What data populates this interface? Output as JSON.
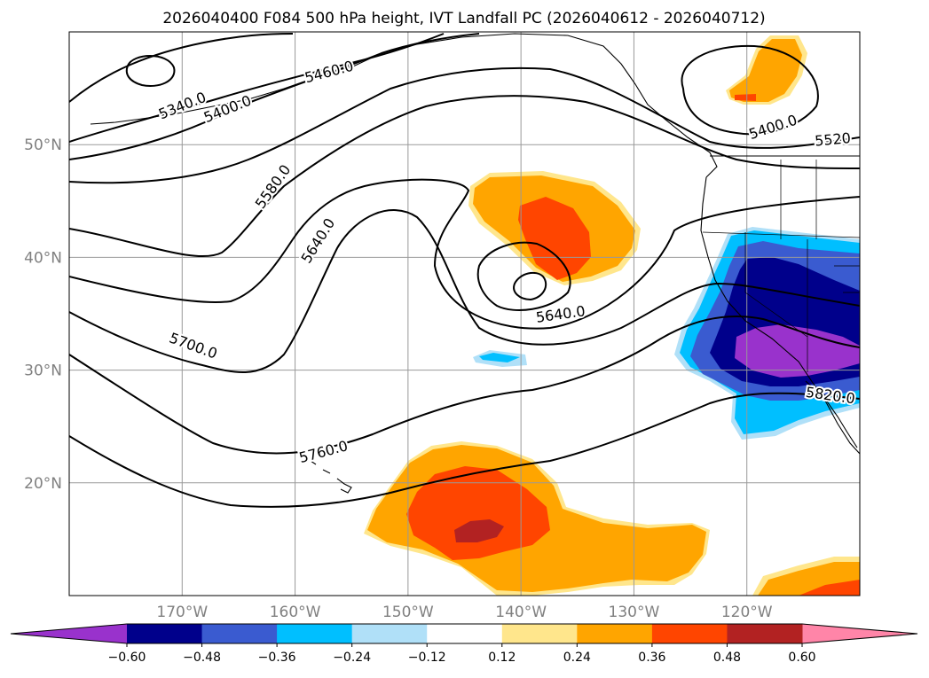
{
  "title": "2026040400 F084 500 hPa height, IVT Landfall PC (2026040612 - 2026040712)",
  "chart_data": {
    "type": "heatmap",
    "title": "2026040400 F084 500 hPa height, IVT Landfall PC (2026040612 - 2026040712)",
    "lon_range": [
      -180,
      -110
    ],
    "lat_range": [
      10,
      60
    ],
    "lat_ticks": [
      {
        "value": 50,
        "label": "50°N"
      },
      {
        "value": 40,
        "label": "40°N"
      },
      {
        "value": 30,
        "label": "30°N"
      },
      {
        "value": 20,
        "label": "20°N"
      }
    ],
    "lon_ticks": [
      {
        "value": -170,
        "label": "170°W"
      },
      {
        "value": -160,
        "label": "160°W"
      },
      {
        "value": -150,
        "label": "150°W"
      },
      {
        "value": -140,
        "label": "140°W"
      },
      {
        "value": -130,
        "label": "130°W"
      },
      {
        "value": -120,
        "label": "120°W"
      }
    ],
    "contour_labels": [
      {
        "text": "5340.0",
        "lon": -170,
        "lat": 53.5,
        "angle": -22
      },
      {
        "text": "5400.0",
        "lon": -166,
        "lat": 53.2,
        "angle": -22
      },
      {
        "text": "5460.0",
        "lon": -157,
        "lat": 56.5,
        "angle": -15
      },
      {
        "text": "5400.0",
        "lon": -117.7,
        "lat": 51.6,
        "angle": -18
      },
      {
        "text": "5520",
        "lon": -112.4,
        "lat": 50.5,
        "angle": -5
      },
      {
        "text": "5580.0",
        "lon": -162,
        "lat": 46.3,
        "angle": -55
      },
      {
        "text": "5640.0",
        "lon": -158,
        "lat": 41.5,
        "angle": -58
      },
      {
        "text": "5640.0",
        "lon": -136.5,
        "lat": 35,
        "angle": -8
      },
      {
        "text": "5700.0",
        "lon": -169,
        "lat": 32.2,
        "angle": 20
      },
      {
        "text": "5760.0",
        "lon": -157.5,
        "lat": 22.8,
        "angle": -15
      },
      {
        "text": "5820.0",
        "lon": -112.6,
        "lat": 27.8,
        "angle": 8
      }
    ],
    "colorbar": {
      "colors": [
        "#9932cc",
        "#00008b",
        "#3a5bd0",
        "#00bfff",
        "#b0e0f8",
        "#ffffff",
        "#ffe68c",
        "#ffa500",
        "#ff4500",
        "#b22222",
        "#ff85a8"
      ],
      "boundaries": [
        -0.6,
        -0.48,
        -0.36,
        -0.24,
        -0.12,
        0.12,
        0.24,
        0.36,
        0.48,
        0.6
      ],
      "tick_labels": [
        "−0.60",
        "−0.48",
        "−0.36",
        "−0.24",
        "−0.12",
        "0.12",
        "0.24",
        "0.36",
        "0.48",
        "0.60"
      ],
      "extend": "both"
    }
  }
}
